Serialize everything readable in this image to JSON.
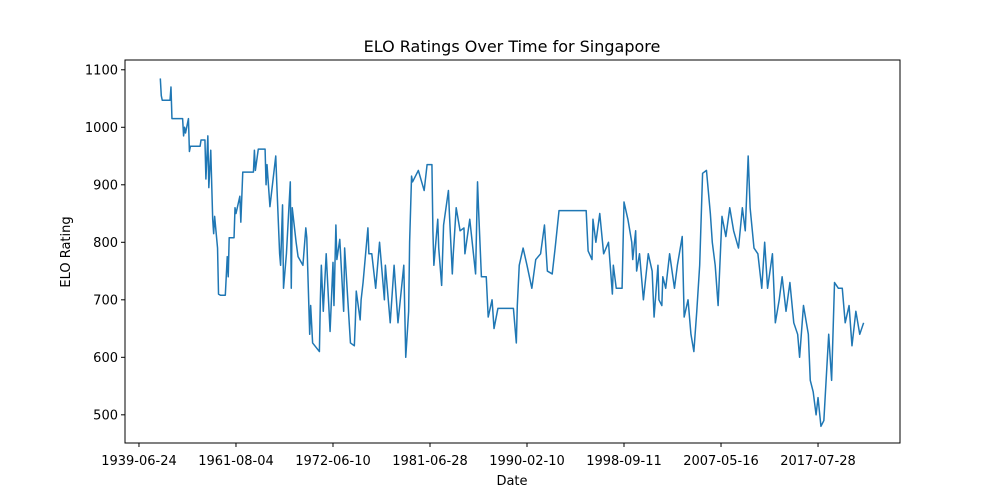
{
  "chart_data": {
    "type": "line",
    "title": "ELO Ratings Over Time for Singapore",
    "x_label": "Date",
    "y_label": "ELO Rating",
    "x": [
      22,
      23,
      24,
      32,
      33,
      34,
      45,
      46,
      47,
      48,
      51,
      52,
      53,
      63,
      64,
      68,
      69,
      71,
      72,
      74,
      76,
      77,
      78,
      81,
      82,
      84,
      89,
      91,
      92,
      93,
      98,
      99,
      100,
      104,
      105,
      107,
      118,
      119,
      120,
      123,
      130,
      131,
      132,
      135,
      141,
      142,
      145,
      146,
      148,
      149,
      152,
      156,
      157,
      158,
      162,
      164,
      169,
      172,
      173,
      176,
      177,
      179,
      186,
      187,
      188,
      190,
      193,
      197,
      200,
      201,
      203,
      204,
      207,
      211,
      212,
      218,
      222,
      223,
      224,
      228,
      229,
      231,
      236,
      237,
      240,
      244,
      248,
      253,
      254,
      259,
      263,
      267,
      273,
      275,
      278,
      279,
      281,
      282,
      288,
      294,
      295,
      297,
      302,
      303,
      304,
      308,
      309,
      312,
      314,
      319,
      320,
      323,
      324,
      327,
      331,
      335,
      336,
      341,
      347,
      349,
      350,
      353,
      358,
      360,
      364,
      366,
      370,
      386,
      389,
      390,
      392,
      396,
      400,
      405,
      409,
      414,
      418,
      421,
      426,
      429,
      433,
      461,
      463,
      467,
      468,
      471,
      475,
      479,
      484,
      488,
      489,
      492,
      498,
      500,
      504,
      508,
      509,
      512,
      513,
      516,
      520,
      525,
      529,
      531,
      535,
      536,
      539,
      540,
      543,
      547,
      552,
      555,
      560,
      562,
      566,
      569,
      572,
      575,
      578,
      581,
      585,
      589,
      591,
      594,
      597,
      601,
      605,
      609,
      613,
      618,
      622,
      625,
      628,
      630,
      634,
      638,
      642,
      645,
      648,
      653,
      656,
      660,
      663,
      667,
      671,
      675,
      679,
      681,
      685,
      688,
      690,
      692,
      695,
      698,
      700,
      703,
      706,
      711,
      714,
      717,
      721,
      725,
      728,
      732,
      735,
      739,
      743,
      747
    ],
    "series": [
      {
        "name": "ELO Rating",
        "color": "#1f77b4",
        "values": [
          1085,
          1055,
          1047,
          1047,
          1070,
          1015,
          1015,
          985,
          1000,
          990,
          1015,
          958,
          967,
          967,
          978,
          978,
          910,
          985,
          895,
          960,
          840,
          815,
          845,
          790,
          710,
          708,
          708,
          775,
          740,
          808,
          808,
          860,
          850,
          880,
          835,
          922,
          922,
          960,
          925,
          962,
          962,
          900,
          935,
          862,
          950,
          905,
          780,
          760,
          865,
          720,
          780,
          905,
          720,
          860,
          800,
          775,
          760,
          825,
          808,
          640,
          690,
          625,
          610,
          700,
          760,
          680,
          780,
          645,
          765,
          690,
          830,
          770,
          805,
          680,
          790,
          625,
          620,
          660,
          715,
          665,
          700,
          730,
          825,
          780,
          780,
          720,
          800,
          700,
          760,
          660,
          760,
          660,
          760,
          600,
          680,
          800,
          915,
          905,
          925,
          890,
          905,
          935,
          935,
          820,
          760,
          840,
          790,
          725,
          830,
          890,
          850,
          745,
          780,
          860,
          820,
          825,
          780,
          840,
          745,
          905,
          860,
          740,
          740,
          670,
          700,
          650,
          685,
          685,
          625,
          690,
          760,
          790,
          760,
          720,
          770,
          780,
          830,
          750,
          745,
          790,
          855,
          855,
          785,
          770,
          840,
          800,
          850,
          780,
          800,
          710,
          760,
          720,
          720,
          870,
          840,
          800,
          770,
          820,
          750,
          780,
          700,
          780,
          750,
          670,
          760,
          700,
          690,
          740,
          720,
          780,
          720,
          760,
          810,
          670,
          700,
          640,
          610,
          680,
          760,
          920,
          925,
          850,
          800,
          760,
          690,
          845,
          810,
          860,
          820,
          790,
          860,
          820,
          950,
          860,
          790,
          780,
          720,
          800,
          720,
          780,
          660,
          700,
          740,
          680,
          730,
          660,
          640,
          600,
          690,
          660,
          640,
          560,
          540,
          500,
          530,
          480,
          490,
          640,
          560,
          730,
          720,
          720,
          660,
          690,
          620,
          680,
          640,
          660
        ]
      }
    ],
    "xlim": [
      -14.4,
      784.5
    ],
    "xticks": [
      {
        "value": 0,
        "label": "1939-06-24"
      },
      {
        "value": 100,
        "label": "1961-08-04"
      },
      {
        "value": 200,
        "label": "1972-06-10"
      },
      {
        "value": 300,
        "label": "1981-06-28"
      },
      {
        "value": 400,
        "label": "1990-02-10"
      },
      {
        "value": 500,
        "label": "1998-09-11"
      },
      {
        "value": 600,
        "label": "2007-05-16"
      },
      {
        "value": 700,
        "label": "2017-07-28"
      }
    ],
    "ylim": [
      451,
      1117
    ],
    "yticks": [
      500,
      600,
      700,
      800,
      900,
      1000,
      1100
    ]
  }
}
